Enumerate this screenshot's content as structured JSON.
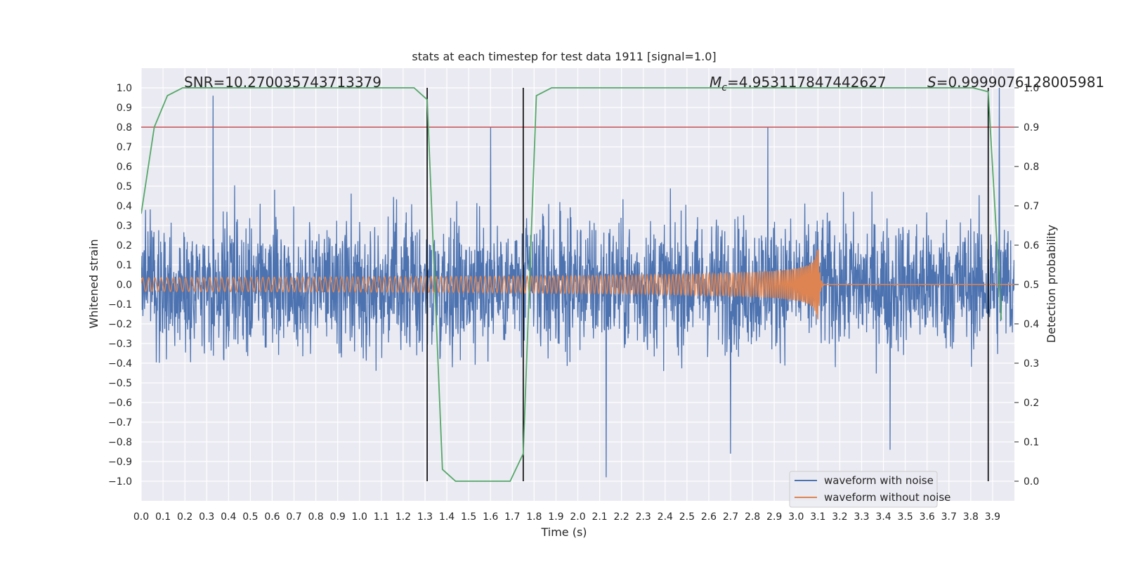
{
  "chart_data": {
    "type": "line",
    "title": "stats at each timestep for test data 1911 [signal=1.0]",
    "xlabel": "Time (s)",
    "ylabel": "Whitened strain",
    "ylabel_right": "Detection probability",
    "xlim": [
      0.0,
      4.0
    ],
    "ylim": [
      -1.1,
      1.1
    ],
    "ylim_right": [
      -0.05,
      1.05
    ],
    "x_ticks": [
      0.0,
      0.1,
      0.2,
      0.3,
      0.4,
      0.5,
      0.6,
      0.7,
      0.8,
      0.9,
      1.0,
      1.1,
      1.2,
      1.3,
      1.4,
      1.5,
      1.6,
      1.7,
      1.8,
      1.9,
      2.0,
      2.1,
      2.2,
      2.3,
      2.4,
      2.5,
      2.6,
      2.7,
      2.8,
      2.9,
      3.0,
      3.1,
      3.2,
      3.3,
      3.4,
      3.5,
      3.6,
      3.7,
      3.8,
      3.9
    ],
    "x_tick_labels": [
      "0.0",
      "0.1",
      "0.2",
      "0.3",
      "0.4",
      "0.5",
      "0.6",
      "0.7",
      "0.8",
      "0.9",
      "1.0",
      "1.1",
      "1.2",
      "1.3",
      "1.4",
      "1.5",
      "1.6",
      "1.7",
      "1.8",
      "1.9",
      "2.0",
      "2.1",
      "2.2",
      "2.3",
      "2.4",
      "2.5",
      "2.6",
      "2.7",
      "2.8",
      "2.9",
      "3.0",
      "3.1",
      "3.2",
      "3.3",
      "3.4",
      "3.5",
      "3.6",
      "3.7",
      "3.8",
      "3.9"
    ],
    "y_ticks": [
      1.0,
      0.9,
      0.8,
      0.7,
      0.6,
      0.5,
      0.4,
      0.3,
      0.2,
      0.1,
      0.0,
      -0.1,
      -0.2,
      -0.3,
      -0.4,
      -0.5,
      -0.6,
      -0.7,
      -0.8,
      -0.9,
      -1.0
    ],
    "y_tick_labels": [
      "1.0",
      "0.9",
      "0.8",
      "0.7",
      "0.6",
      "0.5",
      "0.4",
      "0.3",
      "0.2",
      "0.1",
      "0.0",
      "−0.1",
      "−0.2",
      "−0.3",
      "−0.4",
      "−0.5",
      "−0.6",
      "−0.7",
      "−0.8",
      "−0.9",
      "−1.0"
    ],
    "y2_ticks": [
      1.0,
      0.9,
      0.8,
      0.7,
      0.6,
      0.5,
      0.4,
      0.3,
      0.2,
      0.1,
      0.0
    ],
    "y2_tick_labels": [
      "1.0",
      "0.9",
      "0.8",
      "0.7",
      "0.6",
      "0.5",
      "0.4",
      "0.3",
      "0.2",
      "0.1",
      "0.0"
    ],
    "annotations": {
      "snr": "SNR=10.270035743713379",
      "mc_symbol": "M",
      "mc_subscript": "c",
      "mc_value": "=4.953117847442627",
      "s_symbol": "S",
      "s_value": "=0.9999076128005981"
    },
    "legend": {
      "position": "lower-right",
      "entries": [
        {
          "label": "waveform with noise",
          "color": "#4c72b0"
        },
        {
          "label": "waveform without noise",
          "color": "#dd8452"
        }
      ]
    },
    "series": [
      {
        "name": "waveform with noise",
        "axis": "left",
        "color": "#4c72b0",
        "description": "dense noisy whitened strain, amplitude mostly within +/-0.7",
        "peaks": [
          [
            0.33,
            0.96
          ],
          [
            1.6,
            0.8
          ],
          [
            2.87,
            0.8
          ],
          [
            3.93,
            1.0
          ],
          [
            2.13,
            -0.98
          ],
          [
            2.7,
            -0.86
          ],
          [
            3.43,
            -0.84
          ]
        ]
      },
      {
        "name": "waveform without noise",
        "axis": "left",
        "color": "#dd8452",
        "chirp": {
          "start": 0.0,
          "merger": 3.1,
          "amp_start": 0.035,
          "amp_peak": 0.3,
          "freq_start": 35,
          "freq_end": 150
        }
      },
      {
        "name": "detection probability",
        "axis": "right",
        "color": "#55a868",
        "x": [
          0.0,
          0.06,
          0.12,
          0.19,
          0.25,
          1.25,
          1.31,
          1.38,
          1.44,
          1.5,
          1.56,
          1.63,
          1.69,
          1.75,
          1.81,
          1.88,
          3.81,
          3.88,
          3.94
        ],
        "y": [
          0.68,
          0.9,
          0.98,
          1.0,
          1.0,
          1.0,
          0.97,
          0.03,
          0.0,
          0.0,
          0.0,
          0.0,
          0.0,
          0.07,
          0.98,
          1.0,
          1.0,
          0.99,
          0.41
        ]
      }
    ],
    "threshold": {
      "axis": "right",
      "value": 0.9,
      "color": "#c44e52"
    },
    "vertical_lines": [
      1.31,
      1.75,
      3.88
    ]
  }
}
